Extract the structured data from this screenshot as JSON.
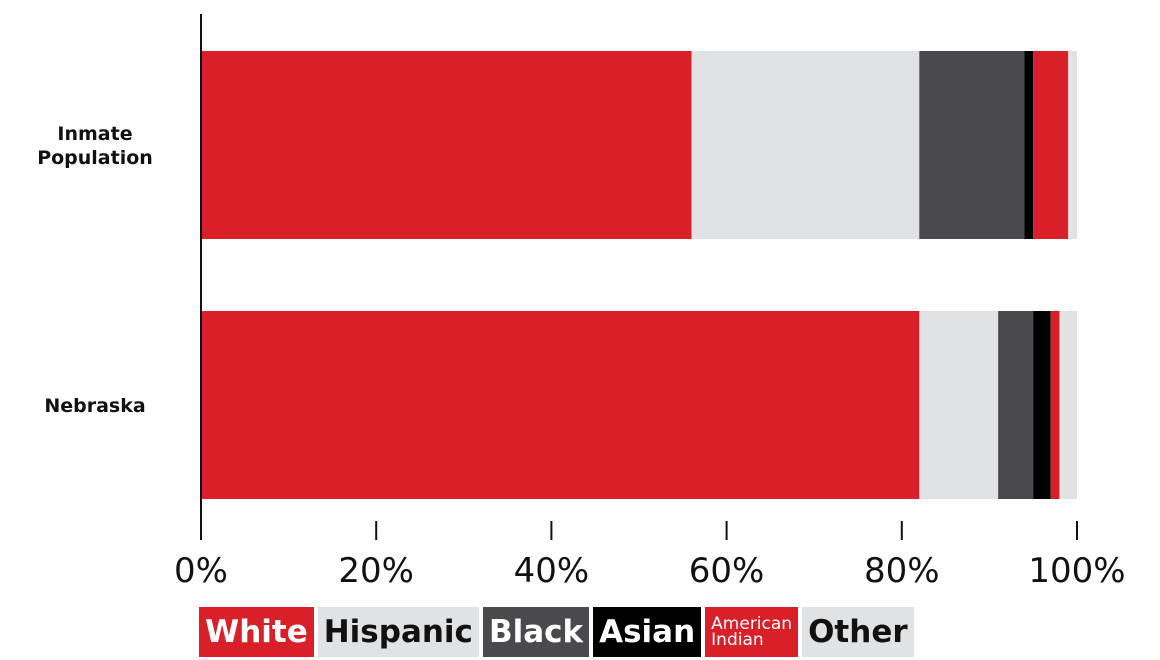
{
  "chart_data": {
    "type": "bar",
    "orientation": "horizontal",
    "stacked": true,
    "categories": [
      "Inmate Population",
      "Nebraska"
    ],
    "category_labels": [
      [
        "Inmate",
        "Population"
      ],
      [
        "Nebraska"
      ]
    ],
    "series": [
      {
        "name": "White",
        "color": "#d91f28",
        "values": [
          56,
          82
        ]
      },
      {
        "name": "Hispanic",
        "color": "#e1e2e4",
        "values": [
          26,
          9
        ]
      },
      {
        "name": "Black",
        "color": "#4a4a4d",
        "values": [
          12,
          4
        ]
      },
      {
        "name": "Asian",
        "color": "#000000",
        "values": [
          1,
          2
        ]
      },
      {
        "name": "American Indian",
        "color": "#d91f28",
        "values": [
          4,
          1
        ]
      },
      {
        "name": "Other",
        "color": "#e1e2e4",
        "values": [
          1,
          2
        ]
      }
    ],
    "xlim": [
      0,
      100
    ],
    "x_ticks": [
      "0%",
      "20%",
      "40%",
      "60%",
      "80%",
      "100%"
    ],
    "x_tick_values": [
      0,
      20,
      40,
      60,
      80,
      100
    ],
    "grid": false,
    "legend_position": "bottom"
  },
  "legend": [
    {
      "label": "White",
      "bg": "#d91f28",
      "fg": "#ffffff"
    },
    {
      "label": "Hispanic",
      "bg": "#e1e2e4",
      "fg": "#111111"
    },
    {
      "label": "Black",
      "bg": "#4a4a4d",
      "fg": "#ffffff"
    },
    {
      "label": "Asian",
      "bg": "#000000",
      "fg": "#ffffff"
    },
    {
      "label": "American Indian",
      "bg": "#d91f28",
      "fg": "#ffffff",
      "lines": [
        "American",
        "Indian"
      ]
    },
    {
      "label": "Other",
      "bg": "#e1e2e4",
      "fg": "#111111"
    }
  ]
}
